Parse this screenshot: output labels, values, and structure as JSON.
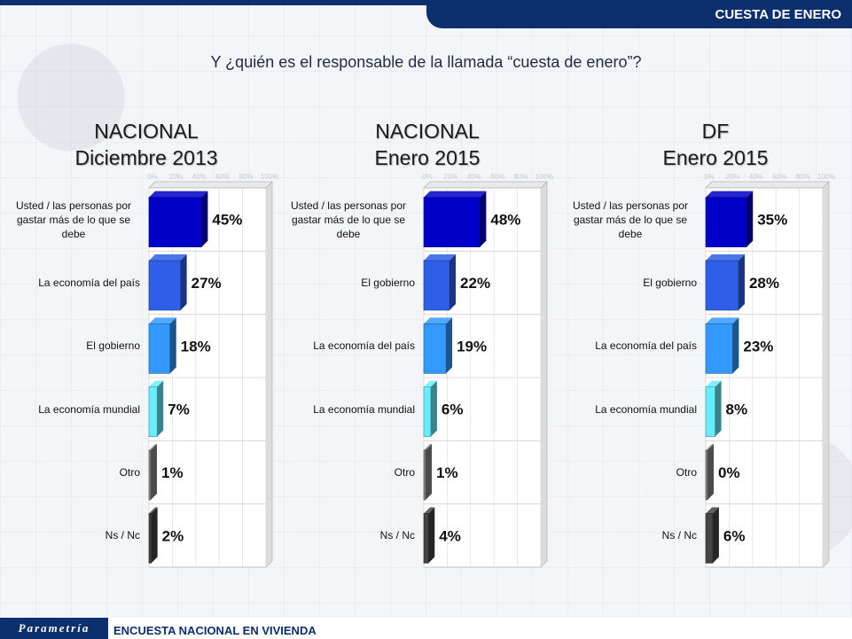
{
  "header": {
    "section_title": "CUESTA DE ENERO"
  },
  "question": "Y ¿quién es el responsable de la llamada “cuesta de enero”?",
  "footer": {
    "logo": "Parametría",
    "survey_name": "ENCUESTA NACIONAL EN VIVIENDA"
  },
  "colors": {
    "header_bg": "#0d2f6e",
    "rank1": "#0000c8",
    "rank2": "#2f5ee8",
    "rank3": "#3399ff",
    "rank4": "#66eeff",
    "rank5": "#888888",
    "rank6": "#444444"
  },
  "chart_data": [
    {
      "type": "bar",
      "orientation": "horizontal",
      "title_line1": "NACIONAL",
      "title_line2": "Diciembre 2013",
      "xlim": [
        0,
        100
      ],
      "xticks": [
        "0%",
        "20%",
        "40%",
        "60%",
        "80%",
        "100%"
      ],
      "categories": [
        "Usted / las personas por gastar más de lo que se debe",
        "La economía del país",
        "El gobierno",
        "La economía mundial",
        "Otro",
        "Ns / Nc"
      ],
      "values": [
        45,
        27,
        18,
        7,
        1,
        2
      ],
      "value_labels": [
        "45%",
        "27%",
        "18%",
        "7%",
        "1%",
        "2%"
      ]
    },
    {
      "type": "bar",
      "orientation": "horizontal",
      "title_line1": "NACIONAL",
      "title_line2": "Enero 2015",
      "xlim": [
        0,
        100
      ],
      "xticks": [
        "0%",
        "20%",
        "40%",
        "60%",
        "80%",
        "100%"
      ],
      "categories": [
        "Usted / las personas por gastar más de lo que se debe",
        "El gobierno",
        "La economía del país",
        "La economía mundial",
        "Otro",
        "Ns / Nc"
      ],
      "values": [
        48,
        22,
        19,
        6,
        1,
        4
      ],
      "value_labels": [
        "48%",
        "22%",
        "19%",
        "6%",
        "1%",
        "4%"
      ]
    },
    {
      "type": "bar",
      "orientation": "horizontal",
      "title_line1": "DF",
      "title_line2": "Enero 2015",
      "xlim": [
        0,
        100
      ],
      "xticks": [
        "0%",
        "20%",
        "40%",
        "60%",
        "80%",
        "100%"
      ],
      "categories": [
        "Usted / las personas por gastar más de lo que se debe",
        "El gobierno",
        "La economía del país",
        "La economía mundial",
        "Otro",
        "Ns / Nc"
      ],
      "values": [
        35,
        28,
        23,
        8,
        0,
        6
      ],
      "value_labels": [
        "35%",
        "28%",
        "23%",
        "8%",
        "0%",
        "6%"
      ]
    }
  ]
}
